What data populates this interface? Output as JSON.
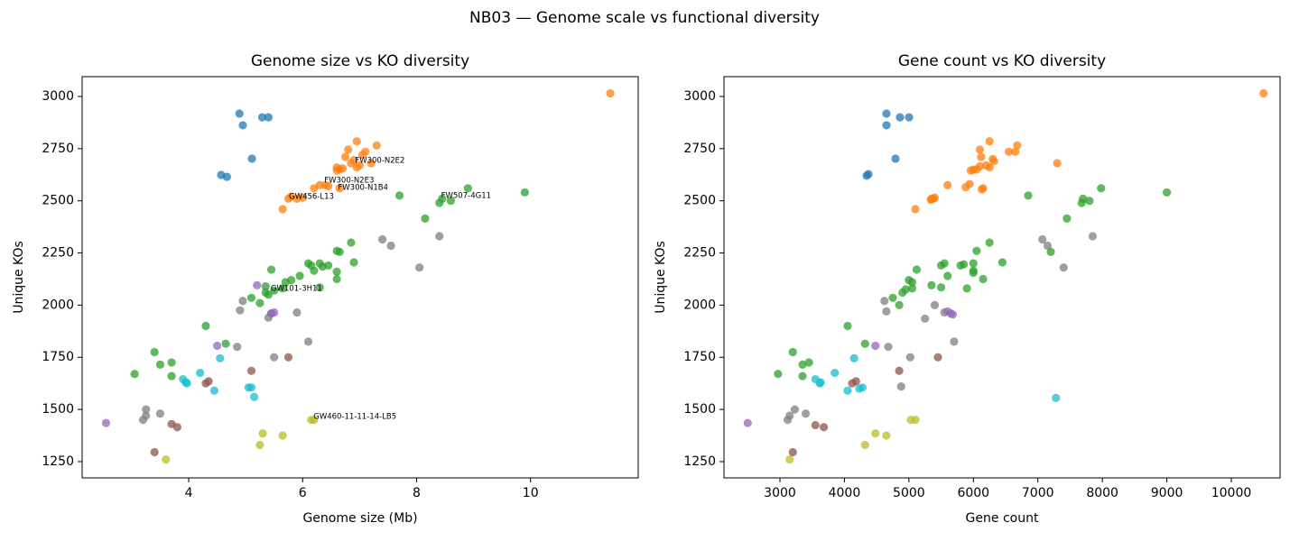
{
  "title": "NB03 — Genome scale vs functional diversity",
  "chart_data": [
    {
      "type": "scatter",
      "title": "Genome size vs KO diversity",
      "x_label": "Genome size (Mb)",
      "y_label": "Unique KOs",
      "xlim": [
        2.13,
        11.89
      ],
      "ylim": [
        1172,
        3095
      ],
      "xticks": [
        4,
        6,
        8,
        10
      ],
      "yticks": [
        1250,
        1500,
        1750,
        2000,
        2250,
        2500,
        2750,
        3000
      ],
      "series": [
        {
          "color": "#1f77b4",
          "x": [
            4.89,
            4.95,
            5.29,
            5.4,
            5.11,
            4.57,
            4.67
          ],
          "y": [
            2918,
            2862,
            2900,
            2900,
            2702,
            2624,
            2615
          ]
        },
        {
          "color": "#ff7f0e",
          "x": [
            11.4,
            6.95,
            7.3,
            6.8,
            7.1,
            7.05,
            6.75,
            6.9,
            6.85,
            7.0,
            6.95,
            6.6,
            6.65,
            6.7,
            6.6,
            6.3,
            6.4,
            6.45,
            6.65,
            6.2,
            5.8,
            5.9,
            6.0,
            5.75,
            5.65,
            7.2
          ],
          "y": [
            3015,
            2785,
            2765,
            2745,
            2735,
            2720,
            2710,
            2695,
            2680,
            2670,
            2660,
            2660,
            2650,
            2655,
            2645,
            2575,
            2575,
            2570,
            2560,
            2560,
            2520,
            2510,
            2515,
            2510,
            2460,
            2680
          ]
        },
        {
          "color": "#2ca02c",
          "x": [
            3.05,
            3.4,
            3.5,
            3.7,
            3.7,
            4.3,
            4.65,
            5.1,
            5.25,
            5.35,
            5.4,
            5.45,
            5.5,
            5.65,
            5.7,
            5.8,
            5.95,
            6.1,
            6.15,
            6.2,
            6.3,
            6.35,
            6.45,
            6.6,
            6.65,
            6.6,
            6.6,
            6.85,
            6.9,
            7.7,
            8.15,
            8.4,
            8.45,
            8.6,
            8.9,
            9.9,
            5.35,
            6.3
          ],
          "y": [
            1670,
            1775,
            1715,
            1725,
            1660,
            1900,
            1815,
            2035,
            2010,
            2060,
            2050,
            2170,
            2070,
            2080,
            2110,
            2120,
            2140,
            2200,
            2190,
            2165,
            2200,
            2185,
            2190,
            2260,
            2255,
            2160,
            2125,
            2300,
            2205,
            2525,
            2415,
            2490,
            2510,
            2500,
            2560,
            2540,
            2090,
            2085
          ]
        },
        {
          "color": "#7f7f7f",
          "x": [
            3.2,
            3.25,
            3.25,
            3.5,
            4.85,
            4.9,
            4.95,
            5.4,
            5.45,
            5.5,
            5.9,
            6.1,
            7.4,
            7.55,
            8.05,
            8.4
          ],
          "y": [
            1450,
            1500,
            1470,
            1480,
            1800,
            1975,
            2020,
            1940,
            1960,
            1750,
            1965,
            1825,
            2315,
            2285,
            2180,
            2330
          ]
        },
        {
          "color": "#9467bd",
          "x": [
            2.55,
            4.5,
            5.2,
            5.45,
            5.5
          ],
          "y": [
            1435,
            1805,
            2095,
            1960,
            1965
          ]
        },
        {
          "color": "#8c564b",
          "x": [
            3.4,
            3.7,
            3.8,
            4.3,
            4.35,
            5.1,
            5.75
          ],
          "y": [
            1295,
            1430,
            1415,
            1625,
            1635,
            1685,
            1750
          ]
        },
        {
          "color": "#17becf",
          "x": [
            3.9,
            3.95,
            3.97,
            4.2,
            4.45,
            4.55,
            5.05,
            5.1,
            5.15
          ],
          "y": [
            1645,
            1630,
            1625,
            1675,
            1590,
            1745,
            1605,
            1605,
            1560
          ]
        },
        {
          "color": "#bcbd22",
          "x": [
            3.6,
            5.25,
            5.3,
            5.65,
            6.15,
            6.2
          ],
          "y": [
            1260,
            1330,
            1385,
            1375,
            1450,
            1450
          ]
        }
      ],
      "annotations": [
        {
          "text": "FW300-N2E2",
          "x": 6.92,
          "y": 2693
        },
        {
          "text": "FW300-N2E3",
          "x": 6.38,
          "y": 2598
        },
        {
          "text": "FW300-N1B4",
          "x": 6.62,
          "y": 2563
        },
        {
          "text": "GW456-L13",
          "x": 5.76,
          "y": 2520
        },
        {
          "text": "FW507-4G11",
          "x": 8.43,
          "y": 2525
        },
        {
          "text": "GW101-3H11",
          "x": 5.44,
          "y": 2080
        },
        {
          "text": "GW460-11-11-14-LB5",
          "x": 6.19,
          "y": 1466
        }
      ]
    },
    {
      "type": "scatter",
      "title": "Gene count vs KO diversity",
      "x_label": "Gene count",
      "y_label": "Unique KOs",
      "xlim": [
        2132,
        10756
      ],
      "ylim": [
        1172,
        3095
      ],
      "xticks": [
        3000,
        4000,
        5000,
        6000,
        7000,
        8000,
        9000,
        10000
      ],
      "yticks": [
        1250,
        1500,
        1750,
        2000,
        2250,
        2500,
        2750,
        3000
      ],
      "series": [
        {
          "color": "#1f77b4",
          "x": [
            4652,
            4652,
            4862,
            5002,
            4792,
            4344,
            4372
          ],
          "y": [
            2918,
            2862,
            2900,
            2900,
            2702,
            2620,
            2628
          ]
        },
        {
          "color": "#ff7f0e",
          "x": [
            10500,
            6250,
            6680,
            6100,
            6650,
            6550,
            6120,
            6300,
            6320,
            6200,
            6250,
            6000,
            5960,
            6100,
            6050,
            6150,
            5940,
            5880,
            5600,
            6130,
            5350,
            5400,
            5380,
            5340,
            5100,
            7300
          ],
          "y": [
            3015,
            2785,
            2765,
            2745,
            2735,
            2735,
            2710,
            2700,
            2690,
            2670,
            2660,
            2650,
            2645,
            2665,
            2650,
            2560,
            2580,
            2565,
            2575,
            2555,
            2510,
            2515,
            2510,
            2505,
            2460,
            2680
          ]
        },
        {
          "color": "#2ca02c",
          "x": [
            2970,
            3200,
            3350,
            3450,
            3350,
            4050,
            4320,
            4750,
            4850,
            4950,
            4900,
            5120,
            5050,
            5500,
            5050,
            5000,
            5600,
            5550,
            5500,
            6000,
            6000,
            5800,
            5850,
            6050,
            7200,
            6000,
            6150,
            6250,
            5900,
            6850,
            7450,
            7680,
            7700,
            7800,
            7980,
            9000,
            5350,
            6450
          ],
          "y": [
            1670,
            1775,
            1715,
            1725,
            1660,
            1900,
            1815,
            2035,
            2000,
            2075,
            2060,
            2170,
            2080,
            2085,
            2110,
            2120,
            2140,
            2200,
            2190,
            2165,
            2200,
            2190,
            2195,
            2260,
            2255,
            2155,
            2125,
            2300,
            2080,
            2525,
            2415,
            2490,
            2510,
            2500,
            2560,
            2540,
            2095,
            2205
          ]
        },
        {
          "color": "#7f7f7f",
          "x": [
            3120,
            3230,
            3150,
            3400,
            4680,
            4620,
            4650,
            5250,
            5550,
            5020,
            5400,
            5700,
            7070,
            7150,
            7400,
            7850,
            4880
          ],
          "y": [
            1450,
            1500,
            1470,
            1480,
            1800,
            2020,
            1970,
            1935,
            1965,
            1750,
            2000,
            1825,
            2315,
            2285,
            2180,
            2330,
            1610
          ]
        },
        {
          "color": "#9467bd",
          "x": [
            2500,
            4480,
            5650,
            5600,
            5680
          ],
          "y": [
            1435,
            1805,
            1960,
            1970,
            1955
          ]
        },
        {
          "color": "#8c564b",
          "x": [
            3200,
            3550,
            3680,
            4120,
            4180,
            4850,
            5450
          ],
          "y": [
            1295,
            1425,
            1415,
            1625,
            1635,
            1685,
            1750
          ]
        },
        {
          "color": "#17becf",
          "x": [
            3550,
            3630,
            3620,
            3850,
            4050,
            4150,
            4280,
            4230,
            7280
          ],
          "y": [
            1645,
            1630,
            1625,
            1675,
            1590,
            1745,
            1605,
            1600,
            1555
          ]
        },
        {
          "color": "#bcbd22",
          "x": [
            3150,
            4320,
            4480,
            4650,
            5030,
            5100
          ],
          "y": [
            1260,
            1330,
            1385,
            1375,
            1450,
            1450
          ]
        }
      ]
    }
  ]
}
